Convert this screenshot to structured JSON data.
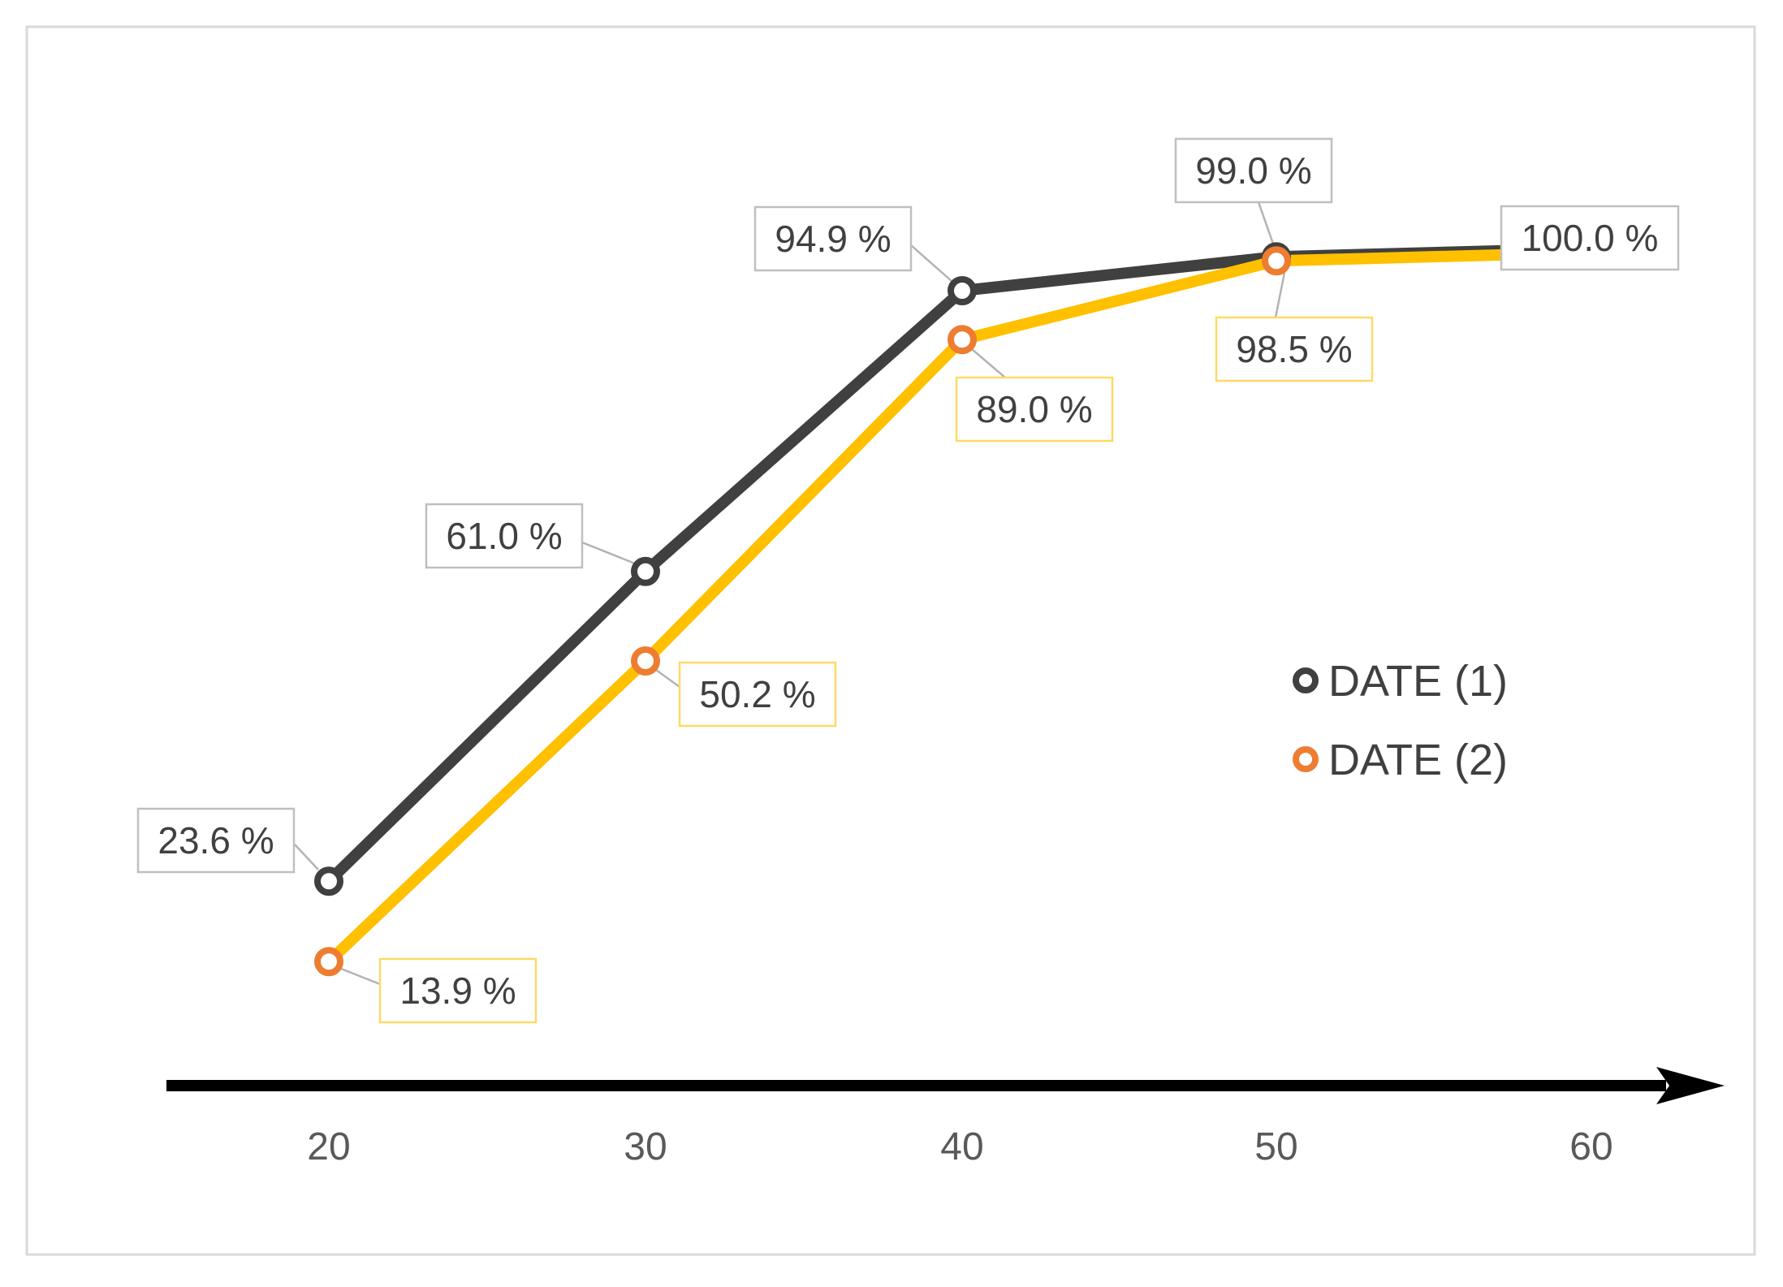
{
  "chart_data": {
    "type": "line",
    "title": "",
    "x": [
      20,
      30,
      40,
      50,
      60
    ],
    "xticks": [
      "20",
      "30",
      "40",
      "50",
      "60"
    ],
    "xlim": [
      20,
      60
    ],
    "ylim_percent": [
      0,
      100
    ],
    "grid": false,
    "series": [
      {
        "name": "DATE (1)",
        "line_color": "#404040",
        "marker_color": "#404040",
        "marker_style": "open-circle",
        "label_border_color": "#BFBFBF",
        "values": [
          23.6,
          61.0,
          94.9,
          99.0,
          100.0
        ],
        "point_labels": [
          "23.6 %",
          "61.0 %",
          "94.9 %",
          "99.0 %",
          "100.0 %"
        ]
      },
      {
        "name": "DATE (2)",
        "line_color": "#FFC000",
        "marker_color": "#ED7D31",
        "marker_style": "open-circle",
        "label_border_color": "#FFD966",
        "values": [
          13.9,
          50.2,
          89.0,
          98.5,
          100.0
        ],
        "point_labels": [
          "13.9 %",
          "50.2 %",
          "89.0 %",
          "98.5 %",
          null
        ]
      }
    ],
    "legend": {
      "position": "right-middle",
      "entries": [
        "DATE (1)",
        "DATE (2)"
      ]
    },
    "axis": {
      "x_arrow": true,
      "color": "#000000"
    },
    "colors": {
      "label_text": "#404040",
      "tick_text": "#595959",
      "leader_line": "#B3B3B3",
      "frame_border": "#D9D9D9",
      "label_fill": "#FFFFFF"
    }
  }
}
